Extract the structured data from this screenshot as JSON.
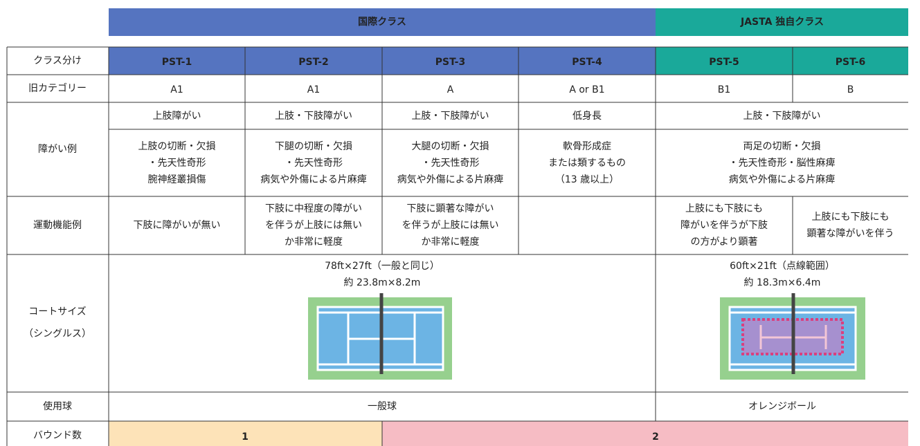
{
  "group_headers": [
    "国際クラス",
    "JASTA 独自クラス"
  ],
  "header_label": "クラス分け",
  "classes": [
    "PST-1",
    "PST-2",
    "PST-3",
    "PST-4",
    "PST-5",
    "PST-6"
  ],
  "old_category": {
    "label": "旧カテゴリー",
    "values": [
      "A1",
      "A1",
      "A",
      "A or B1",
      "B1",
      "B"
    ]
  },
  "disability": {
    "label": "障がい例",
    "types": [
      "上肢障がい",
      "上肢・下肢障がい",
      "上肢・下肢障がい",
      "低身長",
      "上肢・下肢障がい"
    ],
    "examples": [
      [
        "上肢の切断・欠損",
        "・先天性奇形",
        "腕神経叢損傷"
      ],
      [
        "下腿の切断・欠損",
        "・先天性奇形",
        "病気や外傷による片麻痺"
      ],
      [
        "大腿の切断・欠損",
        "・先天性奇形",
        "病気や外傷による片麻痺"
      ],
      [
        "軟骨形成症",
        "または類するもの",
        "（13 歳以上）"
      ],
      [
        "両足の切断・欠損",
        "・先天性奇形・脳性麻痺",
        "病気や外傷による片麻痺"
      ]
    ]
  },
  "motor": {
    "label": "運動機能例",
    "values": [
      [
        "下肢に障がいが無い"
      ],
      [
        "下肢に中程度の障がい",
        "を伴うが上肢には無い",
        "か非常に軽度"
      ],
      [
        "下肢に顕著な障がい",
        "を伴うが上肢には無い",
        "か非常に軽度"
      ],
      [],
      [
        "上肢にも下肢にも",
        "障がいを伴うが下肢",
        "の方がより顕著"
      ],
      [
        "上肢にも下肢にも",
        "顕著な障がいを伴う"
      ]
    ]
  },
  "court": {
    "label": [
      "コートサイズ",
      "（シングルス）"
    ],
    "standard": [
      "78ft×27ft（一般と同じ）",
      "約 23.8m×8.2m"
    ],
    "jasta": [
      "60ft×21ft（点線範囲）",
      "約 18.3m×6.4m"
    ]
  },
  "ball": {
    "label": "使用球",
    "standard": "一般球",
    "jasta": "オレンジボール"
  },
  "bounce": {
    "label": "バウンド数",
    "values": [
      1,
      2
    ]
  }
}
